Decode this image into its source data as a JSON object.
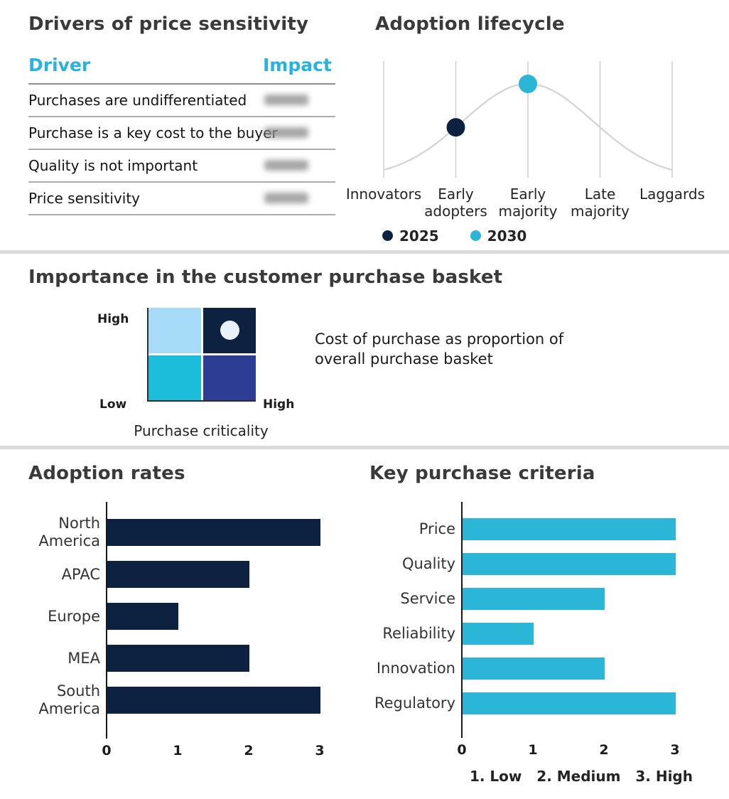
{
  "colors": {
    "navy": "#0d2240",
    "cyan": "#2bb6d8",
    "sky_blue": "#a6dcf7",
    "royal_blue": "#2e3d94",
    "accent_header": "#29b2e0",
    "divider_grey": "#dadada"
  },
  "drivers": {
    "title": "Drivers of price sensitivity",
    "col_driver": "Driver",
    "col_impact": "Impact",
    "rows": [
      "Purchases are undifferentiated",
      "Purchase is a key cost to the buyer",
      "Quality is not important",
      "Price sensitivity"
    ]
  },
  "basket": {
    "title": "Importance in the customer purchase basket",
    "y_axis_top": "High",
    "y_axis_bottom": "Low",
    "x_axis_end": "High",
    "x_axis_label": "Purchase criticality",
    "description": "Cost of purchase as proportion of overall purchase basket",
    "marker_position": "top-right quadrant",
    "quadrant_colors": {
      "top_left": "#a6dcf7",
      "top_right": "#0d2240",
      "bottom_left": "#1cbdda",
      "bottom_right": "#2e3d94",
      "marker": "#e9f2fb"
    }
  },
  "chart_data": [
    {
      "type": "line",
      "title": "Adoption lifecycle",
      "curve": "bell-shaped adoption curve peaking at Early majority",
      "grid": "vertical gridlines at each category",
      "legend_position": "bottom",
      "categories": [
        "Innovators",
        "Early adopters",
        "Early majority",
        "Late majority",
        "Laggards"
      ],
      "points": [
        {
          "series": "2025",
          "category": "Early adopters",
          "color": "#0d2240"
        },
        {
          "series": "2030",
          "category": "Early majority",
          "color": "#2bb6d8"
        }
      ]
    },
    {
      "type": "bar",
      "orientation": "horizontal",
      "title": "Adoption rates",
      "categories": [
        "North America",
        "APAC",
        "Europe",
        "MEA",
        "South America"
      ],
      "values": [
        3,
        2,
        1,
        2,
        3
      ],
      "xticks": [
        0,
        1,
        2,
        3
      ],
      "xlim": [
        0,
        3
      ],
      "color": "#0d2240"
    },
    {
      "type": "bar",
      "orientation": "horizontal",
      "title": "Key purchase criteria",
      "categories": [
        "Price",
        "Quality",
        "Service",
        "Reliability",
        "Innovation",
        "Regulatory"
      ],
      "values": [
        3,
        3,
        2,
        1,
        2,
        3
      ],
      "xticks": [
        0,
        1,
        2,
        3
      ],
      "xlim": [
        0,
        3
      ],
      "color": "#2bb6d8",
      "footnote": "1. Low   2. Medium   3. High"
    }
  ]
}
